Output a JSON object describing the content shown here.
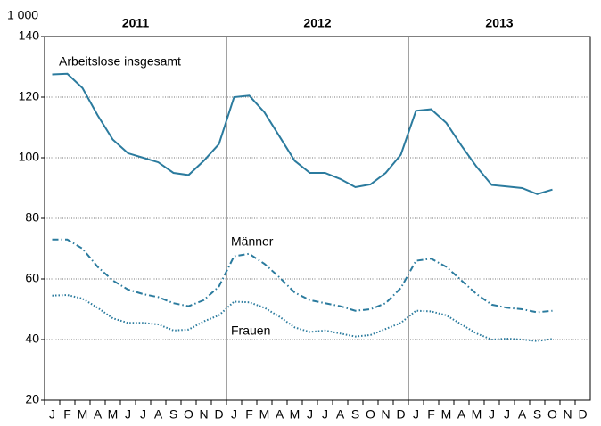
{
  "chart_data": {
    "type": "line",
    "y_unit": "1 000",
    "year_labels": [
      "2011",
      "2012",
      "2013"
    ],
    "categories": [
      "J",
      "F",
      "M",
      "A",
      "M",
      "J",
      "J",
      "A",
      "S",
      "O",
      "N",
      "D",
      "J",
      "F",
      "M",
      "A",
      "M",
      "J",
      "J",
      "A",
      "S",
      "O",
      "N",
      "D",
      "J",
      "F",
      "M",
      "A",
      "M",
      "J",
      "J",
      "A",
      "S",
      "O",
      "N",
      "D"
    ],
    "series": [
      {
        "name": "Arbeitslose insgesamt",
        "color": "#2b7b9e",
        "style": "solid",
        "values": [
          127.5,
          127.7,
          123,
          114,
          106,
          101.5,
          100,
          98.5,
          95,
          94.3,
          99,
          104.5,
          120,
          120.5,
          115,
          107,
          99,
          95,
          95,
          93,
          90.3,
          91.2,
          95,
          101,
          115.5,
          116,
          111.5,
          104,
          97,
          91,
          90.5,
          90,
          88,
          89.5,
          null,
          null
        ]
      },
      {
        "name": "Männer",
        "color": "#2b7b9e",
        "style": "dashdot",
        "values": [
          73,
          73,
          70,
          64,
          59.5,
          56.5,
          55,
          54,
          52,
          51,
          53,
          57.5,
          67.5,
          68.3,
          65,
          60.5,
          55.5,
          53,
          52,
          51,
          49.5,
          50,
          52,
          57,
          66,
          66.7,
          64,
          59.5,
          55,
          51.5,
          50.5,
          50,
          49,
          49.5,
          null,
          null
        ]
      },
      {
        "name": "Frauen",
        "color": "#2b7b9e",
        "style": "dotted",
        "values": [
          54.5,
          54.7,
          53.5,
          50.5,
          47,
          45.5,
          45.5,
          45,
          43,
          43.3,
          46,
          48,
          52.5,
          52.3,
          50.5,
          47.5,
          44,
          42.5,
          43,
          42,
          41,
          41.5,
          43.5,
          45.5,
          49.5,
          49.3,
          48,
          45,
          42,
          40,
          40.3,
          40,
          39.5,
          40.2,
          null,
          null
        ]
      }
    ],
    "ylim": [
      20,
      140
    ],
    "yticks": [
      20,
      40,
      60,
      80,
      100,
      120,
      140
    ],
    "grid": true
  }
}
